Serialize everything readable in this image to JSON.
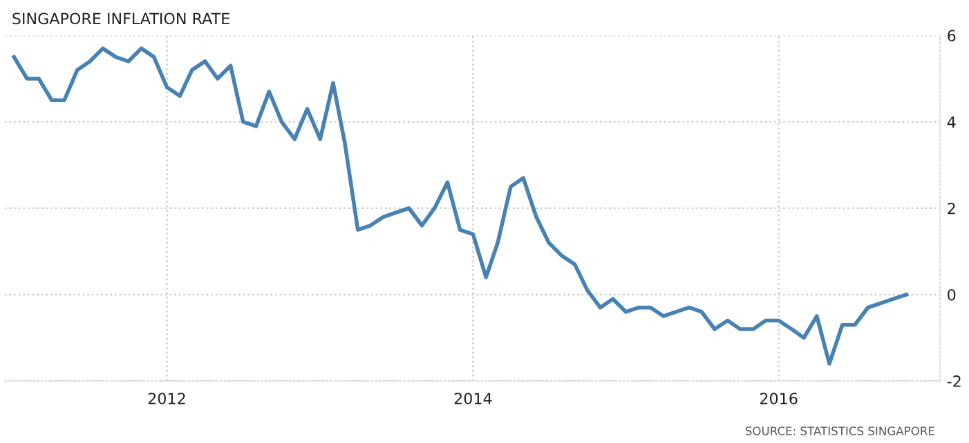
{
  "chart_data": {
    "type": "line",
    "title": "SINGAPORE INFLATION RATE",
    "x": [
      "2011-01",
      "2011-02",
      "2011-03",
      "2011-04",
      "2011-05",
      "2011-06",
      "2011-07",
      "2011-08",
      "2011-09",
      "2011-10",
      "2011-11",
      "2011-12",
      "2012-01",
      "2012-02",
      "2012-03",
      "2012-04",
      "2012-05",
      "2012-06",
      "2012-07",
      "2012-08",
      "2012-09",
      "2012-10",
      "2012-11",
      "2012-12",
      "2013-01",
      "2013-02",
      "2013-03",
      "2013-04",
      "2013-05",
      "2013-06",
      "2013-07",
      "2013-08",
      "2013-09",
      "2013-10",
      "2013-11",
      "2013-12",
      "2014-01",
      "2014-02",
      "2014-03",
      "2014-04",
      "2014-05",
      "2014-06",
      "2014-07",
      "2014-08",
      "2014-09",
      "2014-10",
      "2014-11",
      "2014-12",
      "2015-01",
      "2015-02",
      "2015-03",
      "2015-04",
      "2015-05",
      "2015-06",
      "2015-07",
      "2015-08",
      "2015-09",
      "2015-10",
      "2015-11",
      "2015-12",
      "2016-01",
      "2016-02",
      "2016-03",
      "2016-04",
      "2016-05",
      "2016-06",
      "2016-07",
      "2016-08",
      "2016-09",
      "2016-10",
      "2016-11"
    ],
    "series": [
      {
        "color": "#4682b4",
        "values": [
          5.5,
          5.0,
          5.0,
          4.5,
          4.5,
          5.2,
          5.4,
          5.7,
          5.5,
          5.4,
          5.7,
          5.5,
          4.8,
          4.6,
          5.2,
          5.4,
          5.0,
          5.3,
          4.0,
          3.9,
          4.7,
          4.0,
          3.6,
          4.3,
          3.6,
          4.9,
          3.5,
          1.5,
          1.6,
          1.8,
          1.9,
          2.0,
          1.6,
          2.0,
          2.6,
          1.5,
          1.4,
          0.4,
          1.2,
          2.5,
          2.7,
          1.8,
          1.2,
          0.9,
          0.7,
          0.1,
          -0.3,
          -0.1,
          -0.4,
          -0.3,
          -0.3,
          -0.5,
          -0.4,
          -0.3,
          -0.4,
          -0.8,
          -0.6,
          -0.8,
          -0.8,
          -0.6,
          -0.6,
          -0.8,
          -1.0,
          -0.5,
          -1.6,
          -0.7,
          -0.7,
          -0.3,
          -0.2,
          -0.1,
          0.0
        ]
      }
    ],
    "xlim": [
      "2010-12-10",
      "2017-01-20"
    ],
    "xticks": [
      {
        "value": "2012-01-01",
        "label": "2012"
      },
      {
        "value": "2014-01-01",
        "label": "2014"
      },
      {
        "value": "2016-01-01",
        "label": "2016"
      }
    ],
    "ylim": [
      -2,
      6
    ],
    "yticks": [
      -2,
      0,
      2,
      4,
      6
    ],
    "grid": true,
    "line_style": "solid",
    "marker": "none",
    "annotations": [
      "SOURCE: STATISTICS SINGAPORE"
    ]
  }
}
